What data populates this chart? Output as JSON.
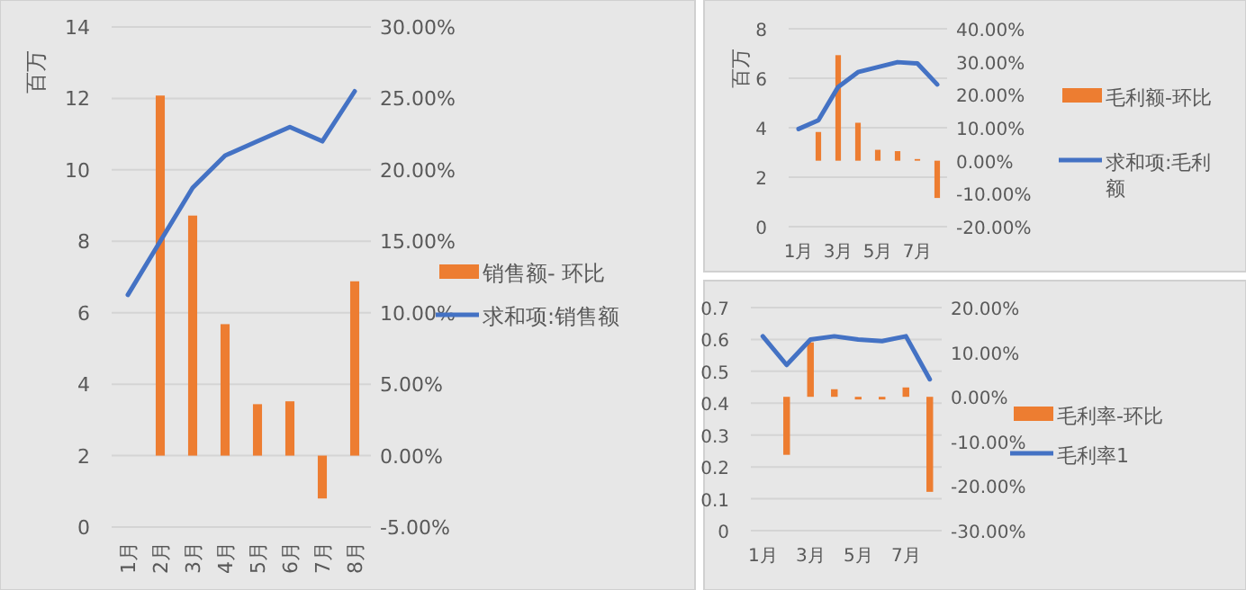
{
  "chart_data": [
    {
      "type": "bar",
      "ylabel": "百万",
      "categories": [
        "1月",
        "2月",
        "3月",
        "4月",
        "5月",
        "6月",
        "7月",
        "8月"
      ],
      "series": [
        {
          "name": "销售额- 环比",
          "axis": "y2",
          "color": "#ed7d31",
          "values": [
            null,
            25.2,
            16.8,
            9.2,
            3.6,
            3.8,
            -3.0,
            12.2
          ]
        },
        {
          "name": "求和项:销售额",
          "type": "line",
          "color": "#4472c4",
          "values": [
            6.5,
            8.0,
            9.5,
            10.4,
            10.8,
            11.2,
            10.8,
            12.2
          ]
        }
      ],
      "ylim": [
        0,
        14
      ],
      "yticks": [
        0,
        2,
        4,
        6,
        8,
        10,
        12,
        14
      ],
      "y2lim": [
        -5,
        30
      ],
      "y2ticks": [
        {
          "value": -5,
          "label": "-5.00%"
        },
        {
          "value": 0,
          "label": "0.00%"
        },
        {
          "value": 5,
          "label": "5.00%"
        },
        {
          "value": 10,
          "label": "10.00%"
        },
        {
          "value": 15,
          "label": "15.00%"
        },
        {
          "value": 20,
          "label": "20.00%"
        },
        {
          "value": 25,
          "label": "25.00%"
        },
        {
          "value": 30,
          "label": "30.00%"
        }
      ],
      "grid": "y",
      "legend": "right"
    },
    {
      "type": "bar",
      "ylabel": "百万",
      "categories": [
        "1月",
        null,
        "3月",
        null,
        "5月",
        null,
        "7月",
        null
      ],
      "series": [
        {
          "name": "毛利额-环比",
          "axis": "y2",
          "color": "#ed7d31",
          "values": [
            null,
            8.7,
            32,
            11.5,
            3.3,
            2.9,
            0.5,
            -11.3
          ]
        },
        {
          "name": "求和项:毛利额",
          "type": "line",
          "color": "#4472c4",
          "values": [
            3.95,
            4.3,
            5.65,
            6.25,
            6.45,
            6.65,
            6.6,
            5.75
          ]
        }
      ],
      "ylim": [
        0,
        8
      ],
      "yticks": [
        0,
        2,
        4,
        6,
        8
      ],
      "y2lim": [
        -20,
        40
      ],
      "y2ticks": [
        {
          "value": -20,
          "label": "-20.00%"
        },
        {
          "value": -10,
          "label": "-10.00%"
        },
        {
          "value": 0,
          "label": "0.00%"
        },
        {
          "value": 10,
          "label": "10.00%"
        },
        {
          "value": 20,
          "label": "20.00%"
        },
        {
          "value": 30,
          "label": "30.00%"
        },
        {
          "value": 40,
          "label": "40.00%"
        }
      ],
      "grid": "y",
      "legend": "right"
    },
    {
      "type": "bar",
      "categories": [
        "1月",
        null,
        "3月",
        null,
        "5月",
        null,
        "7月",
        null
      ],
      "series": [
        {
          "name": "毛利率-环比",
          "axis": "y2",
          "color": "#ed7d31",
          "values": [
            null,
            -13,
            12.2,
            1.7,
            -0.6,
            -0.6,
            2.1,
            -21.3
          ]
        },
        {
          "name": "毛利率1",
          "type": "line",
          "color": "#4472c4",
          "values": [
            0.61,
            0.52,
            0.6,
            0.61,
            0.6,
            0.595,
            0.61,
            0.475
          ]
        }
      ],
      "ylim": [
        0,
        0.7
      ],
      "yticks": [
        0,
        0.1,
        0.2,
        0.3,
        0.4,
        0.5,
        0.6,
        0.7
      ],
      "y2lim": [
        -30,
        20
      ],
      "y2ticks": [
        {
          "value": -30,
          "label": "-30.00%"
        },
        {
          "value": -20,
          "label": "-20.00%"
        },
        {
          "value": -10,
          "label": "-10.00%"
        },
        {
          "value": 0,
          "label": "0.00%"
        },
        {
          "value": 10,
          "label": "10.00%"
        },
        {
          "value": 20,
          "label": "20.00%"
        }
      ],
      "grid": "y",
      "legend": "right"
    }
  ]
}
